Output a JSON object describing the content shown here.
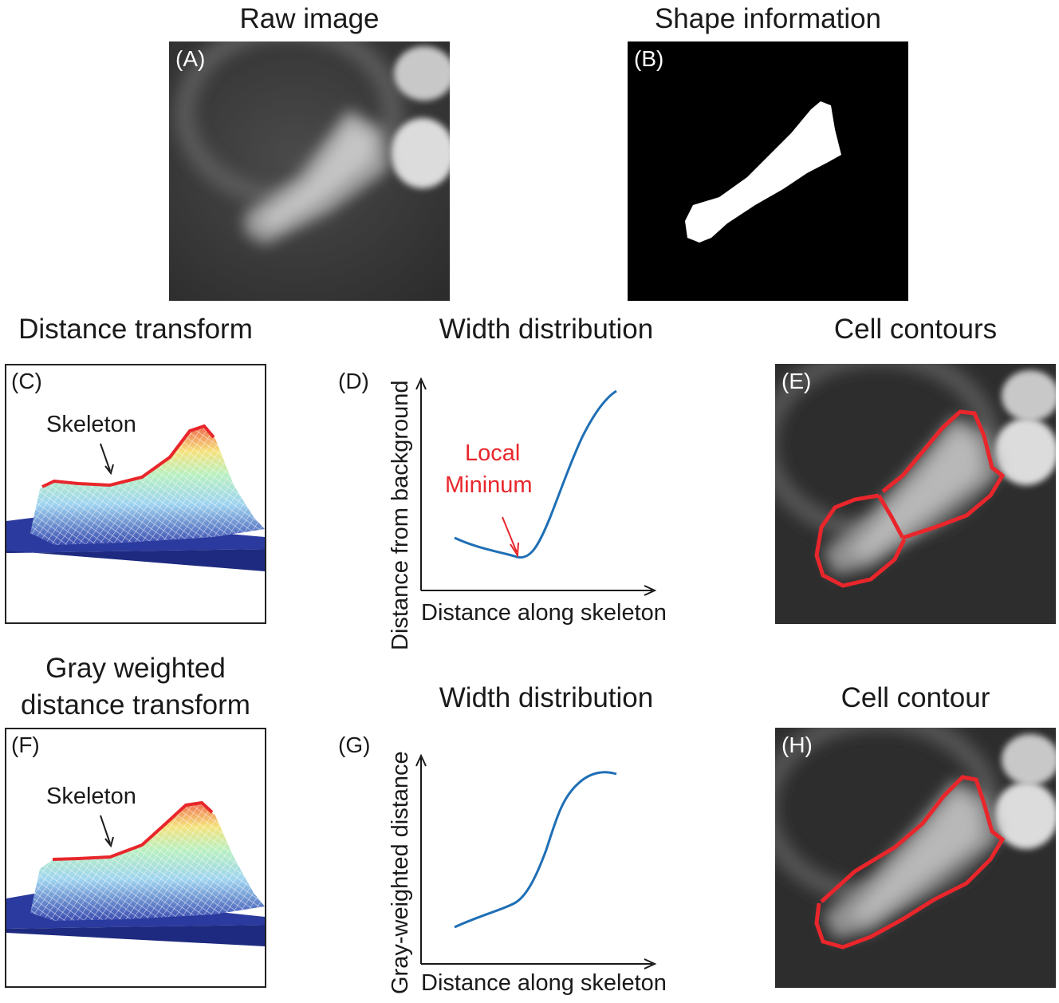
{
  "titles": {
    "raw": "Raw image",
    "shape": "Shape information",
    "dist": "Distance transform",
    "width1": "Width distribution",
    "contours": "Cell contours",
    "gray_line1": "Gray weighted",
    "gray_line2": "distance transform",
    "width2": "Width distribution",
    "contour": "Cell contour"
  },
  "panel_labels": {
    "A": "(A)",
    "B": "(B)",
    "C": "(C)",
    "D": "(D)",
    "E": "(E)",
    "F": "(F)",
    "G": "(G)",
    "H": "(H)"
  },
  "annotations": {
    "skeleton_c": "Skeleton",
    "skeleton_f": "Skeleton",
    "local_min_line1": "Local",
    "local_min_line2": "Mininum"
  },
  "plot_d": {
    "ylabel": "Distance from background",
    "xlabel": "Distance along skeleton"
  },
  "plot_g": {
    "ylabel": "Gray-weighted distance",
    "xlabel": "Distance along skeleton"
  },
  "colors": {
    "curve": "#1f6fb5",
    "contour": "#e8262b",
    "skeleton": "#e8262b",
    "mesh_base": "#2b3a9e"
  }
}
